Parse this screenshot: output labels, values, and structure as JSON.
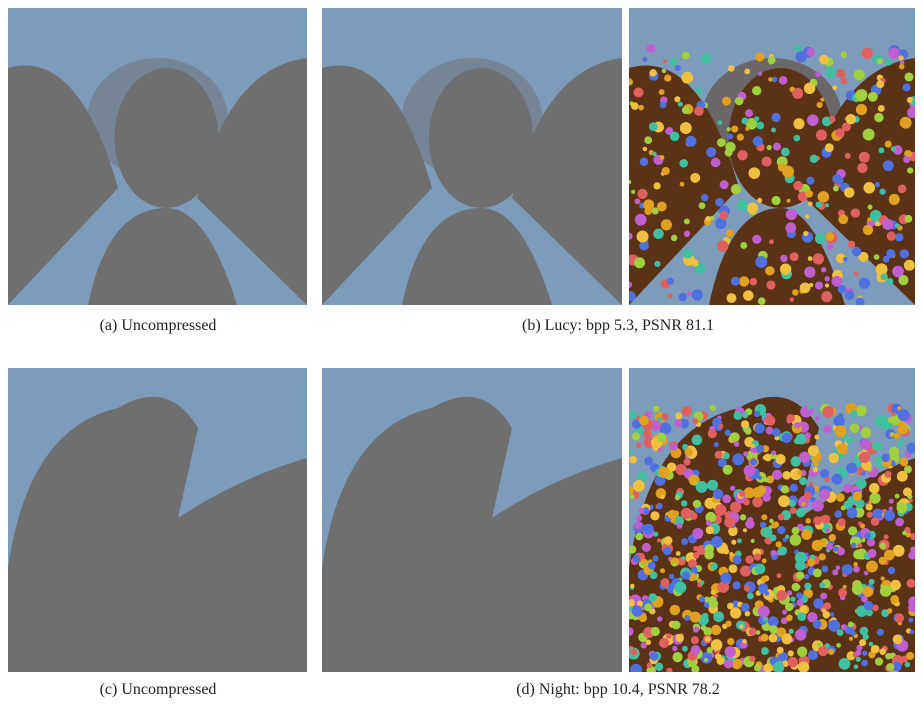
{
  "figure": {
    "captions": [
      "(a) Uncompressed",
      "(b) Lucy: bpp 5.3, PSNR 81.1",
      "(c) Uncompressed",
      "(d) Night: bpp 10.4, PSNR 78.2"
    ]
  }
}
